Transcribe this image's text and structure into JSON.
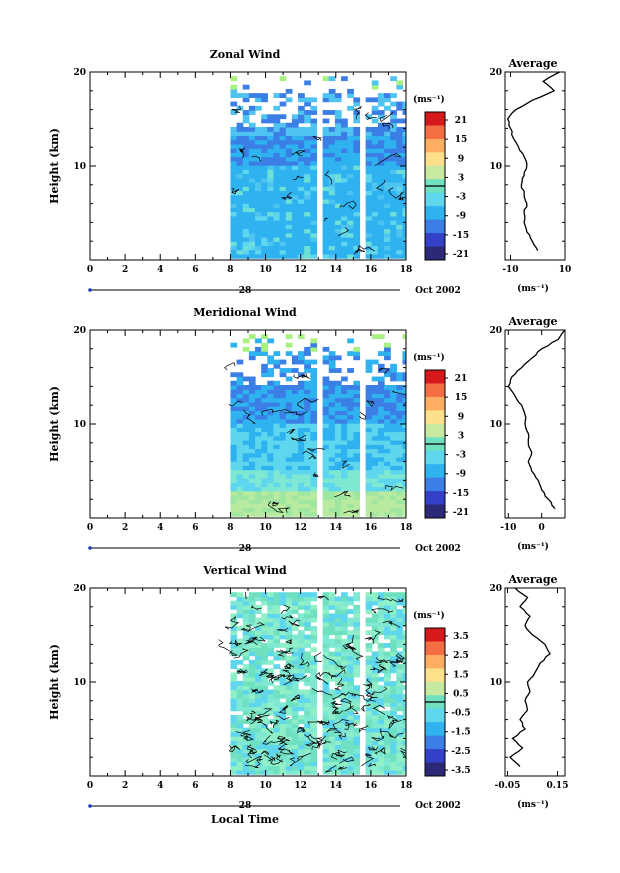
{
  "figure": {
    "xlabel": "Local Time",
    "date_label": "Oct 2002",
    "day_label": "28"
  },
  "panels": [
    {
      "key": "zonal",
      "title": "Zonal Wind",
      "ylabel": "Height (km)",
      "x_ticks": [
        "0",
        "2",
        "4",
        "6",
        "8",
        "10",
        "12",
        "14",
        "16",
        "18"
      ],
      "y_ticks": [
        "10",
        "20"
      ],
      "colorbar": {
        "unit": "(ms⁻¹)",
        "ticks": [
          "21",
          "15",
          "9",
          "3",
          "-3",
          "-9",
          "-15",
          "-21"
        ]
      },
      "avg": {
        "title": "Average",
        "x_ticks": [
          "-10",
          "10"
        ],
        "xlabel": "(ms⁻¹)",
        "y_ticks": [
          "10",
          "20"
        ]
      }
    },
    {
      "key": "meridional",
      "title": "Meridional Wind",
      "ylabel": "Height (km)",
      "x_ticks": [
        "0",
        "2",
        "4",
        "6",
        "8",
        "10",
        "12",
        "14",
        "16",
        "18"
      ],
      "y_ticks": [
        "10",
        "20"
      ],
      "colorbar": {
        "unit": "(ms⁻¹)",
        "ticks": [
          "21",
          "15",
          "9",
          "3",
          "-3",
          "-9",
          "-15",
          "-21"
        ]
      },
      "avg": {
        "title": "Average",
        "x_ticks": [
          "-10",
          "0"
        ],
        "xlabel": "(ms⁻¹)",
        "y_ticks": [
          "10",
          "20"
        ]
      }
    },
    {
      "key": "vertical",
      "title": "Vertical Wind",
      "ylabel": "Height (km)",
      "x_ticks": [
        "0",
        "2",
        "4",
        "6",
        "8",
        "10",
        "12",
        "14",
        "16",
        "18"
      ],
      "y_ticks": [
        "10",
        "20"
      ],
      "colorbar": {
        "unit": "(ms⁻¹)",
        "ticks": [
          "3.5",
          "2.5",
          "1.5",
          "0.5",
          "-0.5",
          "-1.5",
          "-2.5",
          "-3.5"
        ]
      },
      "avg": {
        "title": "Average",
        "x_ticks": [
          "-0.05",
          "0.15"
        ],
        "xlabel": "(ms⁻¹)",
        "y_ticks": [
          "10",
          "20"
        ]
      }
    }
  ],
  "chart_data": [
    {
      "type": "heatmap",
      "title": "Zonal Wind",
      "ylabel": "Height (km)",
      "xlim": [
        0,
        18
      ],
      "ylim": [
        0,
        20
      ],
      "data_time_range": [
        8,
        18
      ],
      "gaps": [
        [
          13.0,
          13.4
        ],
        [
          15.2,
          15.6
        ]
      ],
      "color_levels": [
        -21,
        -15,
        -9,
        -3,
        3,
        9,
        15,
        21
      ],
      "profile": {
        "title": "Average",
        "xlim": [
          -12,
          10
        ],
        "height": [
          1,
          2,
          3,
          4,
          5,
          6,
          7,
          8,
          9,
          10,
          11,
          12,
          13,
          14,
          15,
          16,
          17,
          18,
          19,
          20
        ],
        "value": [
          0,
          -2,
          -4,
          -5,
          -5,
          -4,
          -5,
          -6,
          -5,
          -4,
          -5,
          -7,
          -9,
          -10,
          -11,
          -8,
          -2,
          6,
          2,
          8
        ]
      }
    },
    {
      "type": "heatmap",
      "title": "Meridional Wind",
      "ylabel": "Height (km)",
      "xlim": [
        0,
        18
      ],
      "ylim": [
        0,
        20
      ],
      "data_time_range": [
        8,
        18
      ],
      "gaps": [
        [
          13.0,
          13.4
        ],
        [
          15.2,
          15.6
        ]
      ],
      "color_levels": [
        -21,
        -15,
        -9,
        -3,
        3,
        9,
        15,
        21
      ],
      "profile": {
        "title": "Average",
        "xlim": [
          -11,
          7
        ],
        "height": [
          1,
          2,
          3,
          4,
          5,
          6,
          7,
          8,
          9,
          10,
          11,
          12,
          13,
          14,
          15,
          16,
          17,
          18,
          19,
          20
        ],
        "value": [
          4,
          2,
          0,
          -1,
          -3,
          -4,
          -3,
          -4,
          -4,
          -5,
          -5,
          -6,
          -8,
          -10,
          -9,
          -6,
          -3,
          0,
          5,
          7
        ]
      }
    },
    {
      "type": "heatmap",
      "title": "Vertical Wind",
      "ylabel": "Height (km)",
      "xlim": [
        0,
        18
      ],
      "ylim": [
        0,
        20
      ],
      "data_time_range": [
        8,
        18
      ],
      "gaps": [
        [
          13.0,
          13.4
        ],
        [
          15.2,
          15.6
        ]
      ],
      "color_levels": [
        -3.5,
        -2.5,
        -1.5,
        -0.5,
        0.5,
        1.5,
        2.5,
        3.5
      ],
      "profile": {
        "title": "Average",
        "xlim": [
          -0.06,
          0.18
        ],
        "height": [
          1,
          2,
          3,
          4,
          5,
          6,
          7,
          8,
          9,
          10,
          11,
          12,
          13,
          14,
          15,
          16,
          17,
          18,
          19,
          20
        ],
        "value": [
          0.0,
          -0.04,
          0.01,
          -0.03,
          0.02,
          0.0,
          0.03,
          0.02,
          0.04,
          0.03,
          0.06,
          0.08,
          0.12,
          0.1,
          0.05,
          0.02,
          0.04,
          0.0,
          0.03,
          -0.02
        ]
      }
    }
  ]
}
